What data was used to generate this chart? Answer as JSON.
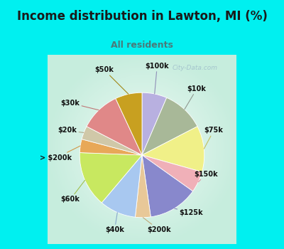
{
  "title": "Income distribution in Lawton, MI (%)",
  "subtitle": "All residents",
  "title_color": "#1a1a1a",
  "subtitle_color": "#4a7a7a",
  "bg_cyan": "#00f0f0",
  "bg_chart_center": "#f0faf8",
  "bg_chart_edge": "#c8eedd",
  "labels": [
    "$100k",
    "$10k",
    "$75k",
    "$150k",
    "$125k",
    "$200k",
    "$40k",
    "$60k",
    "> $200k",
    "$20k",
    "$30k",
    "$50k"
  ],
  "sizes": [
    6.5,
    11.0,
    12.0,
    5.5,
    13.0,
    4.0,
    9.5,
    14.5,
    3.5,
    3.5,
    10.5,
    7.0
  ],
  "colors": [
    "#b8b0e0",
    "#a8b898",
    "#f0f088",
    "#f0b0b8",
    "#8888cc",
    "#e8c898",
    "#a8c8f0",
    "#c8e860",
    "#e8a858",
    "#d0c8a8",
    "#e08888",
    "#c8a020"
  ],
  "startangle": 90,
  "figsize": [
    4.0,
    3.5
  ],
  "dpi": 100
}
